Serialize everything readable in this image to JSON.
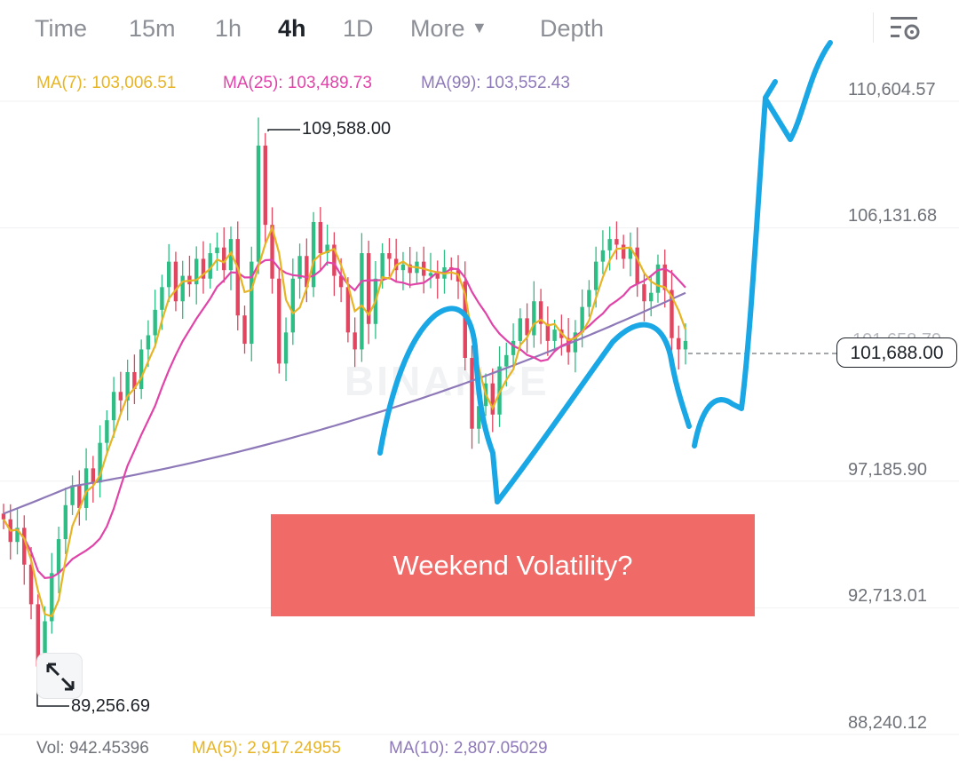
{
  "tabs": [
    {
      "label": "Time",
      "active": false
    },
    {
      "label": "15m",
      "active": false
    },
    {
      "label": "1h",
      "active": false
    },
    {
      "label": "4h",
      "active": true
    },
    {
      "label": "1D",
      "active": false
    },
    {
      "label": "More",
      "active": false
    },
    {
      "label": "Depth",
      "active": false
    }
  ],
  "settings_icon": "chart-settings-icon",
  "ma": {
    "ma7": {
      "label": "MA(7): 103,006.51",
      "color": "#e7b425"
    },
    "ma25": {
      "label": "MA(25): 103,489.73",
      "color": "#e044a8"
    },
    "ma99": {
      "label": "MA(99): 103,552.43",
      "color": "#8e79b8"
    }
  },
  "price_axis": [
    "110,604.57",
    "106,131.68",
    "97,185.90",
    "92,713.01",
    "88,240.12"
  ],
  "last_price": "101,688.00",
  "ghost_price": "101,658.79",
  "high_label": "109,588.00",
  "low_label": "89,256.69",
  "watermark": "BINANCE",
  "banner": "Weekend Volatility?",
  "volume": {
    "vol": {
      "label": "Vol: 942.45396",
      "color": "#6f7379"
    },
    "ma5": {
      "label": "MA(5): 2,917.24955",
      "color": "#e7b425"
    },
    "ma10": {
      "label": "MA(10): 2,807.05029",
      "color": "#8e79b8"
    }
  },
  "colors": {
    "up": "#2ebd85",
    "down": "#e2455f",
    "drawing": "#19a7e6"
  },
  "chart_data": {
    "type": "candlestick",
    "interval": "4h",
    "y_ticks": [
      110604.57,
      106131.68,
      97185.9,
      92713.01,
      88240.12
    ],
    "high": 109588.0,
    "low": 89256.69,
    "last": 101688.0,
    "candles_close": [
      95400,
      94600,
      95100,
      93800,
      92400,
      90200,
      91800,
      93500,
      94700,
      95900,
      96600,
      95800,
      97200,
      96700,
      98100,
      98900,
      99900,
      99600,
      100600,
      100000,
      101400,
      101900,
      102800,
      103600,
      104500,
      103100,
      104000,
      103700,
      104600,
      103900,
      104800,
      105000,
      104200,
      105300,
      102600,
      101600,
      104500,
      108600,
      105800,
      103900,
      100900,
      102000,
      103900,
      104700,
      103600,
      105900,
      104800,
      105100,
      104000,
      103600,
      102000,
      101400,
      104800,
      102300,
      103900,
      104800,
      104600,
      104200,
      104400,
      104100,
      104500,
      104000,
      104100,
      103900,
      104300,
      104200,
      103800,
      101100,
      98600,
      99400,
      100200,
      99100,
      100800,
      101200,
      101700,
      102500,
      101900,
      103100,
      102300,
      101700,
      102100,
      101800,
      101300,
      102000,
      102900,
      103500,
      104500,
      104900,
      105300,
      105100,
      104600,
      105000,
      103700,
      103100,
      103400,
      104400,
      103500,
      101800,
      101400,
      101700
    ]
  }
}
